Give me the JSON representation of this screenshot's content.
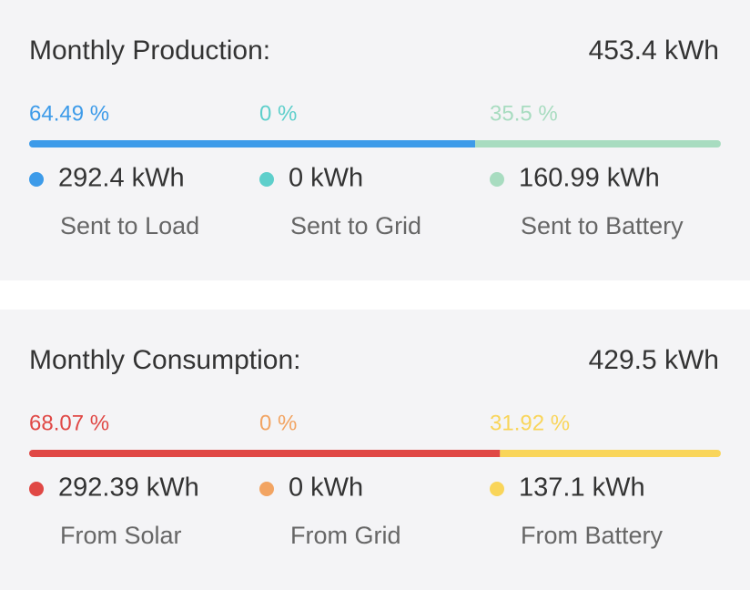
{
  "sections": [
    {
      "title": "Monthly Production:",
      "total": "453.4 kWh",
      "items": [
        {
          "percent": {
            "value": 64.49,
            "label": "64.49 %"
          },
          "color": "#3d9be9",
          "amount": "292.4 kWh",
          "label": "Sent to Load"
        },
        {
          "percent": {
            "value": 0,
            "label": "0 %"
          },
          "color": "#5ecfcb",
          "amount": "0 kWh",
          "label": "Sent to Grid"
        },
        {
          "percent": {
            "value": 35.5,
            "label": "35.5 %"
          },
          "color": "#a8dcc0",
          "amount": "160.99 kWh",
          "label": "Sent to Battery"
        }
      ]
    },
    {
      "title": "Monthly Consumption:",
      "total": "429.5 kWh",
      "items": [
        {
          "percent": {
            "value": 68.07,
            "label": "68.07 %"
          },
          "color": "#e04845",
          "amount": "292.39 kWh",
          "label": "From Solar"
        },
        {
          "percent": {
            "value": 0,
            "label": "0 %"
          },
          "color": "#f2a462",
          "amount": "0 kWh",
          "label": "From Grid"
        },
        {
          "percent": {
            "value": 31.92,
            "label": "31.92 %"
          },
          "color": "#f9d55a",
          "amount": "137.1 kWh",
          "label": "From Battery"
        }
      ]
    }
  ]
}
